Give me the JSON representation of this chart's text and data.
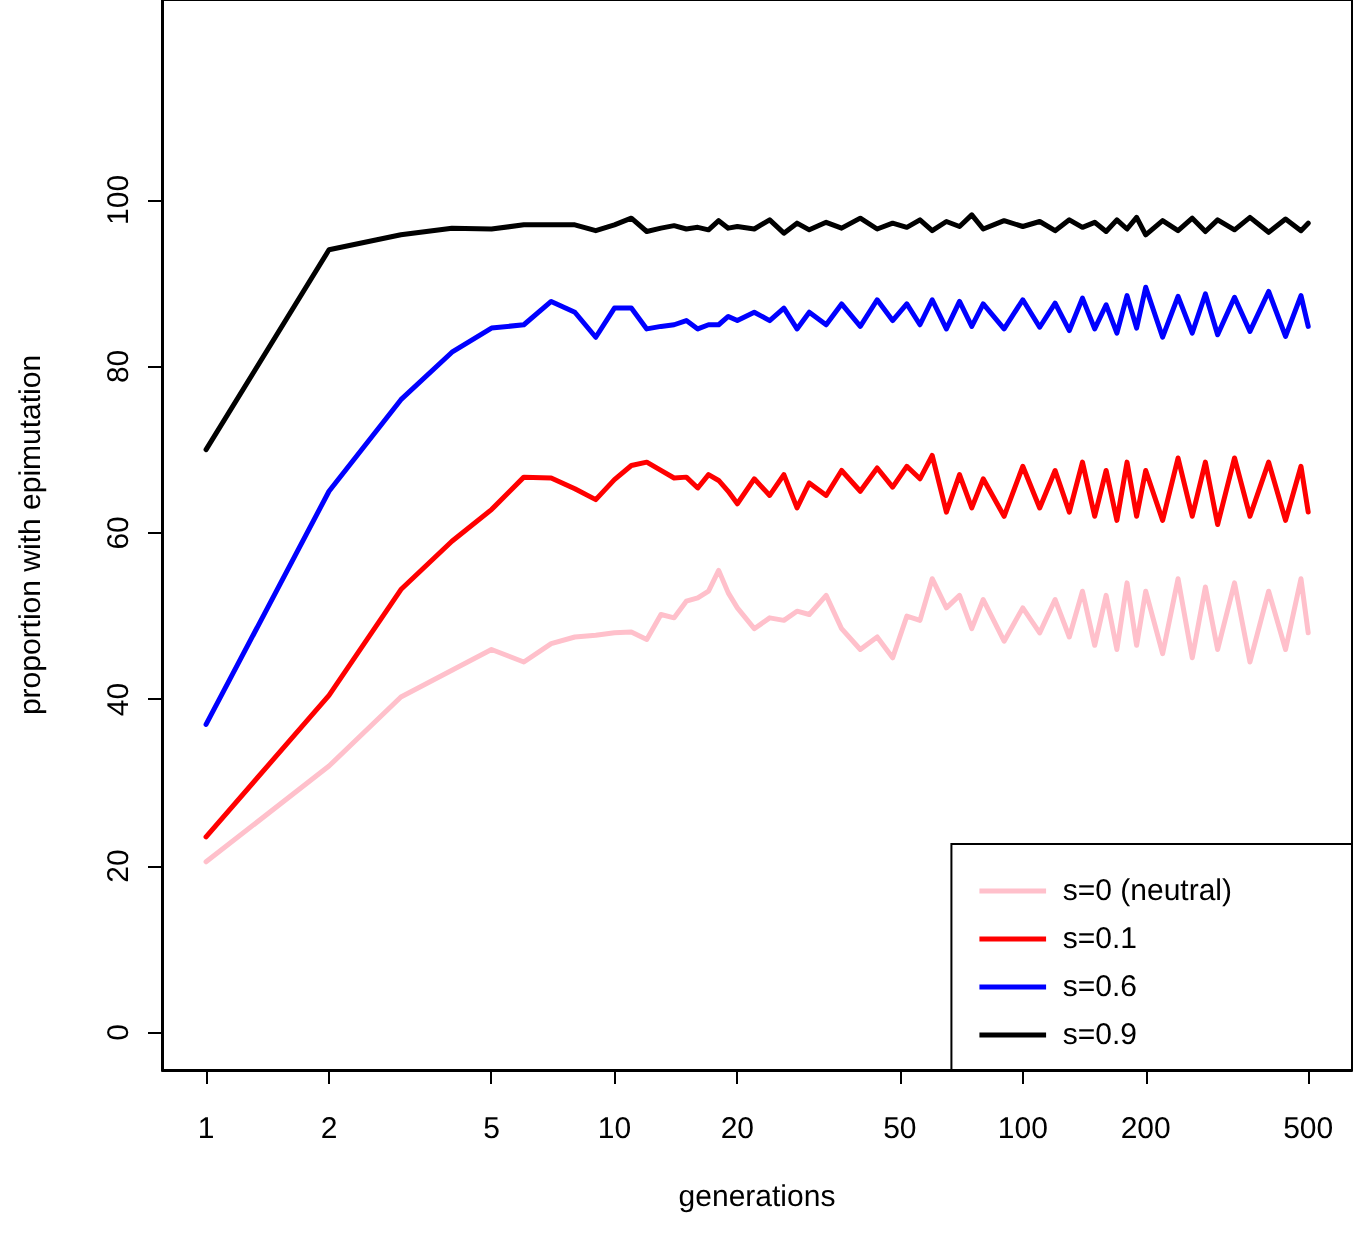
{
  "chart_data": {
    "type": "line",
    "xlabel": "generations",
    "ylabel": "proportion with epimutation",
    "x": [
      1,
      2,
      3,
      4,
      5,
      6,
      7,
      8,
      9,
      10,
      11,
      12,
      13,
      14,
      15,
      16,
      17,
      18,
      19,
      20,
      22,
      24,
      26,
      28,
      30,
      33,
      36,
      40,
      44,
      48,
      52,
      56,
      60,
      65,
      70,
      75,
      80,
      90,
      100,
      110,
      120,
      130,
      140,
      150,
      160,
      170,
      180,
      190,
      200,
      220,
      240,
      260,
      280,
      300,
      330,
      360,
      400,
      440,
      480,
      500
    ],
    "series": [
      {
        "name": "s=0 (neutral)",
        "color": "#ffc0cb",
        "values": [
          20.5,
          32,
          40.3,
          43.5,
          46,
          44.5,
          46.7,
          47.5,
          47.7,
          48,
          48.1,
          47.2,
          50.2,
          49.8,
          51.8,
          52.2,
          53,
          55.5,
          52.8,
          51,
          48.5,
          49.8,
          49.5,
          50.6,
          50.2,
          52.5,
          48.5,
          46,
          47.5,
          45,
          50,
          49.5,
          54.5,
          51,
          52.5,
          48.5,
          52,
          47,
          51,
          48,
          52,
          47.5,
          53,
          46.5,
          52.5,
          46,
          54,
          46.5,
          53,
          45.5,
          54.5,
          45,
          53.5,
          46,
          54,
          44.5,
          53,
          46,
          54.5,
          48
        ]
      },
      {
        "name": "s=0.1",
        "color": "#ff0000",
        "values": [
          23.5,
          40.5,
          53.2,
          59,
          62.8,
          66.7,
          66.6,
          65.3,
          64,
          66.4,
          68.1,
          68.5,
          67.5,
          66.6,
          66.7,
          65.4,
          67,
          66.3,
          65,
          63.5,
          66.5,
          64.5,
          67,
          63,
          66,
          64.5,
          67.5,
          65,
          67.8,
          65.5,
          68,
          66.5,
          69.3,
          62.5,
          67,
          63,
          66.5,
          62,
          68,
          63,
          67.5,
          62.5,
          68.5,
          62,
          67.5,
          61.5,
          68.5,
          62,
          67.5,
          61.5,
          69,
          62,
          68.5,
          61,
          69,
          62,
          68.5,
          61.5,
          68,
          62.5
        ]
      },
      {
        "name": "s=0.6",
        "color": "#0000ff",
        "values": [
          37,
          65,
          76,
          81.7,
          84.6,
          85,
          87.8,
          86.5,
          83.5,
          87,
          87,
          84.5,
          84.8,
          85,
          85.5,
          84.5,
          85,
          85,
          86,
          85.5,
          86.5,
          85.5,
          87,
          84.5,
          86.5,
          85,
          87.5,
          84.8,
          88,
          85.5,
          87.5,
          85,
          88,
          84.5,
          87.8,
          84.8,
          87.5,
          84.5,
          88,
          84.7,
          87.6,
          84.3,
          88.2,
          84.5,
          87.4,
          84,
          88.5,
          84.6,
          89.5,
          83.5,
          88.4,
          84,
          88.7,
          83.8,
          88.3,
          84.2,
          89,
          83.6,
          88.5,
          84.8
        ]
      },
      {
        "name": "s=0.9",
        "color": "#000000",
        "values": [
          70,
          94,
          95.8,
          96.6,
          96.5,
          97,
          97,
          97,
          96.3,
          97,
          97.8,
          96.2,
          96.6,
          96.9,
          96.5,
          96.7,
          96.4,
          97.5,
          96.6,
          96.8,
          96.5,
          97.6,
          96,
          97.2,
          96.4,
          97.3,
          96.6,
          97.8,
          96.5,
          97.2,
          96.7,
          97.6,
          96.3,
          97.4,
          96.8,
          98.2,
          96.5,
          97.5,
          96.8,
          97.4,
          96.3,
          97.6,
          96.7,
          97.3,
          96.2,
          97.6,
          96.5,
          97.9,
          95.8,
          97.5,
          96.3,
          97.8,
          96.2,
          97.6,
          96.4,
          97.9,
          96.1,
          97.7,
          96.3,
          97.2
        ]
      }
    ],
    "log": "x",
    "xlim": [
      0.78,
      640
    ],
    "xticks": [
      1,
      2,
      5,
      10,
      20,
      50,
      100,
      200,
      500
    ],
    "ylim": [
      -4.5,
      124
    ],
    "yticks": [
      0,
      20,
      40,
      60,
      80,
      100
    ],
    "grid": false,
    "legend": "bottom right",
    "marker": "none",
    "line_style": "solid"
  }
}
